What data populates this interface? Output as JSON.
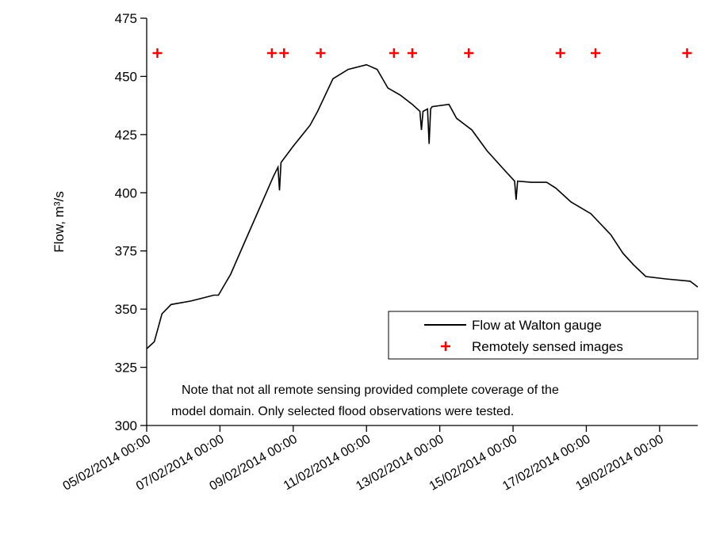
{
  "chart_data": {
    "type": "line",
    "ylabel": "Flow, m³/s",
    "annotation": [
      "Note that not all remote sensing provided complete coverage of the",
      "model domain.  Only selected flood observations were tested."
    ],
    "xlim": [
      "05/02/2014 00:00",
      "20/02/2014 01:00"
    ],
    "xticks": [
      "05/02/2014 00:00",
      "07/02/2014 00:00",
      "09/02/2014 00:00",
      "11/02/2014 00:00",
      "13/02/2014 00:00",
      "15/02/2014 00:00",
      "17/02/2014 00:00",
      "19/02/2014 00:00"
    ],
    "ylim": [
      300,
      475
    ],
    "yticks": [
      300,
      325,
      350,
      375,
      400,
      425,
      450,
      475
    ],
    "legend": "lower right",
    "series": [
      {
        "name": "Flow at Walton gauge",
        "color": "#000000",
        "style": "line",
        "x": [
          "05/02/2014 00:00",
          "05/02/2014 05:00",
          "05/02/2014 10:00",
          "05/02/2014 16:00",
          "06/02/2014 05:00",
          "06/02/2014 20:00",
          "06/02/2014 23:00",
          "07/02/2014 07:00",
          "07/02/2014 17:00",
          "08/02/2014 03:00",
          "08/02/2014 11:00",
          "08/02/2014 14:00",
          "08/02/2014 15:00",
          "08/02/2014 16:00",
          "09/02/2014 00:00",
          "09/02/2014 11:00",
          "09/02/2014 16:00",
          "10/02/2014 02:00",
          "10/02/2014 12:00",
          "11/02/2014 00:00",
          "11/02/2014 07:00",
          "11/02/2014 14:00",
          "11/02/2014 22:00",
          "12/02/2014 06:00",
          "12/02/2014 11:00",
          "12/02/2014 12:00",
          "12/02/2014 13:00",
          "12/02/2014 16:00",
          "12/02/2014 17:00",
          "12/02/2014 18:00",
          "12/02/2014 19:00",
          "13/02/2014 06:00",
          "13/02/2014 11:00",
          "13/02/2014 21:00",
          "14/02/2014 07:00",
          "14/02/2014 18:00",
          "15/02/2014 01:00",
          "15/02/2014 02:00",
          "15/02/2014 03:00",
          "15/02/2014 12:00",
          "15/02/2014 22:00",
          "16/02/2014 04:00",
          "16/02/2014 14:00",
          "17/02/2014 03:00",
          "17/02/2014 16:00",
          "18/02/2014 00:00",
          "18/02/2014 07:00",
          "18/02/2014 15:00",
          "19/02/2014 04:00",
          "19/02/2014 20:00",
          "20/02/2014 01:00"
        ],
        "values": [
          333,
          336,
          348,
          352,
          353.5,
          356,
          356,
          365,
          380,
          395,
          407,
          411,
          401,
          413,
          420,
          429,
          435,
          449,
          453,
          455,
          453,
          445,
          442,
          438,
          435,
          427,
          435,
          436,
          421,
          436,
          437,
          438,
          432,
          427,
          418,
          410,
          405,
          397,
          405,
          404.5,
          404.5,
          402,
          396,
          391,
          382,
          374,
          369,
          364,
          363,
          362,
          359.5
        ]
      },
      {
        "name": "Remotely sensed images",
        "color": "#ff0000",
        "style": "plus",
        "x": [
          "05/02/2014 07:00",
          "08/02/2014 10:00",
          "08/02/2014 18:00",
          "09/02/2014 18:00",
          "11/02/2014 18:00",
          "12/02/2014 06:00",
          "13/02/2014 19:00",
          "16/02/2014 07:00",
          "17/02/2014 06:00",
          "19/02/2014 18:00"
        ],
        "values": [
          460,
          460,
          460,
          460,
          460,
          460,
          460,
          460,
          460,
          460
        ]
      }
    ]
  }
}
